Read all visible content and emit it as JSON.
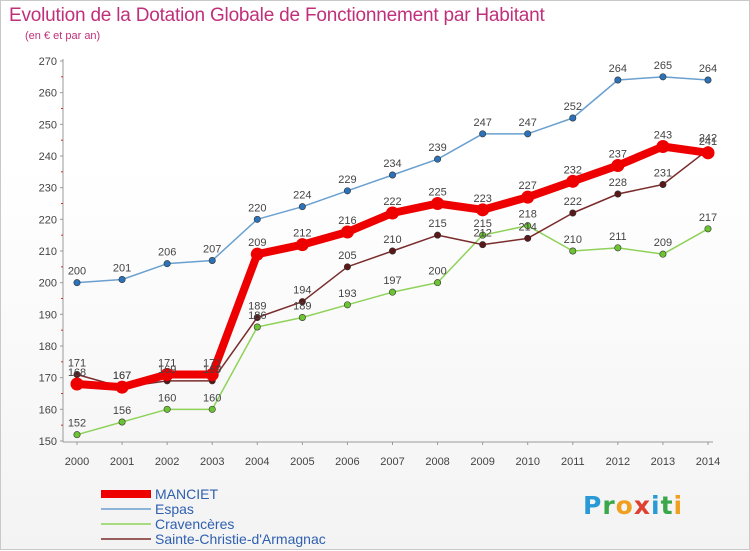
{
  "chart_data": {
    "type": "line",
    "title": "Evolution de la Dotation Globale de Fonctionnement par Habitant",
    "subtitle": "(en € et par an)",
    "x": [
      "2000",
      "2001",
      "2002",
      "2003",
      "2004",
      "2005",
      "2006",
      "2007",
      "2008",
      "2009",
      "2010",
      "2011",
      "2012",
      "2013",
      "2014"
    ],
    "ylim": [
      150,
      270
    ],
    "yticks": [
      150,
      160,
      170,
      180,
      190,
      200,
      210,
      220,
      230,
      240,
      250,
      260,
      270
    ],
    "grid": false,
    "legend_position": "bottom-left",
    "series": [
      {
        "name": "MANCIET",
        "color": "#ee0000",
        "values": [
          168,
          167,
          171,
          171,
          209,
          212,
          216,
          222,
          225,
          223,
          227,
          232,
          237,
          243,
          241
        ]
      },
      {
        "name": "Espas",
        "color": "#6aa0cf",
        "values": [
          200,
          201,
          206,
          207,
          220,
          224,
          229,
          234,
          239,
          247,
          247,
          252,
          264,
          265,
          264
        ]
      },
      {
        "name": "Cravencères",
        "color": "#8fd25a",
        "values": [
          152,
          156,
          160,
          160,
          186,
          189,
          193,
          197,
          200,
          215,
          218,
          210,
          211,
          209,
          217
        ]
      },
      {
        "name": "Sainte-Christie-d'Armagnac",
        "color": "#7a2c2c",
        "values": [
          171,
          167,
          169,
          169,
          189,
          194,
          205,
          210,
          215,
          212,
          214,
          222,
          228,
          231,
          242
        ]
      }
    ]
  },
  "legend": {
    "items": [
      "MANCIET",
      "Espas",
      "Cravencères",
      "Sainte-Christie-d'Armagnac"
    ]
  },
  "logo": {
    "letters": [
      "P",
      "r",
      "o",
      "x",
      "i",
      "t",
      "i"
    ]
  }
}
